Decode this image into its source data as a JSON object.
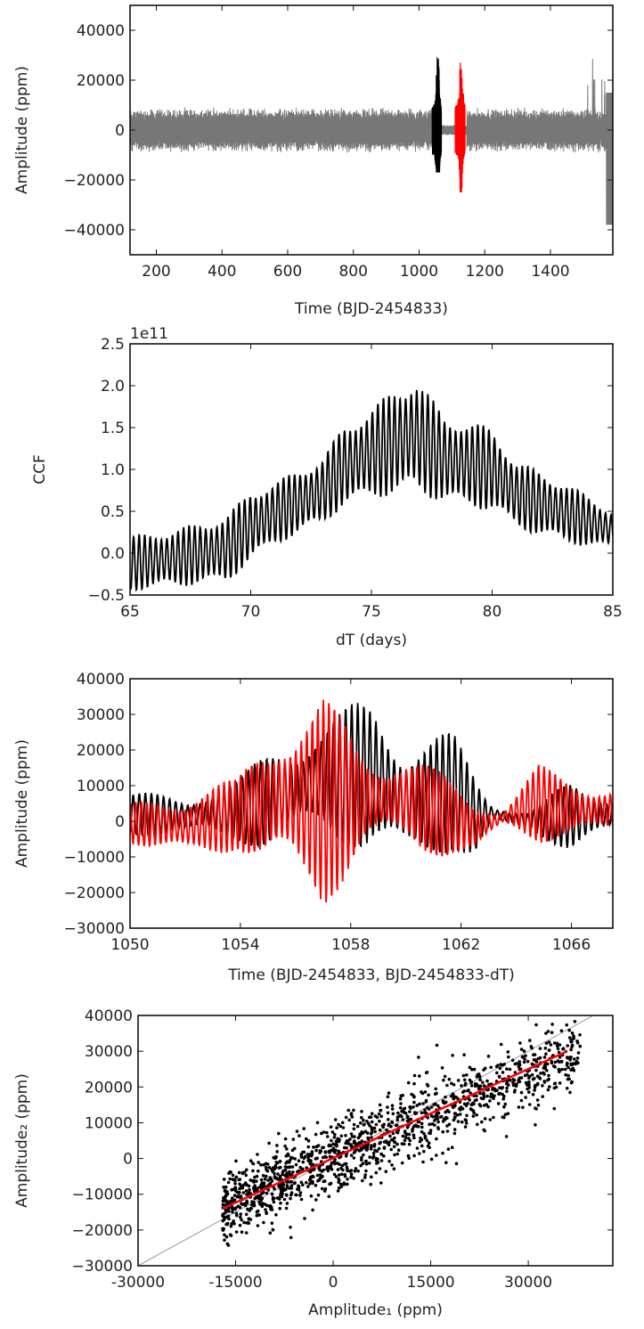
{
  "chart_data": [
    {
      "type": "line",
      "xlabel": "Time (BJD-2454833)",
      "ylabel": "Amplitude (ppm)",
      "xlim": [
        120,
        1590
      ],
      "ylim": [
        -50000,
        50000
      ],
      "xticks": [
        200,
        400,
        600,
        800,
        1000,
        1200,
        1400
      ],
      "xtick_labels": [
        "200",
        "400",
        "600",
        "800",
        "1000",
        "1200",
        "1400"
      ],
      "yticks": [
        40000,
        20000,
        0,
        -20000,
        -40000
      ],
      "ytick_labels": [
        "40000",
        "20000",
        "0",
        "−20000",
        "−40000"
      ],
      "series": [
        {
          "color": "#777777",
          "x_range": [
            120,
            1590
          ],
          "typical_amplitude": 8000,
          "max": 36000,
          "min": -40000
        },
        {
          "color": "#000000",
          "x_range": [
            1040,
            1068
          ],
          "max": 36000,
          "min": -17000
        },
        {
          "color": "#ff0000",
          "x_range": [
            1110,
            1140
          ],
          "max": 36000,
          "min": -25000
        }
      ]
    },
    {
      "type": "line",
      "xlabel": "dT (days)",
      "ylabel": "CCF",
      "offset_text": "1e11",
      "xlim": [
        65,
        85
      ],
      "ylim": [
        -0.5,
        2.5
      ],
      "xticks": [
        65,
        70,
        75,
        80,
        85
      ],
      "xtick_labels": [
        "65",
        "70",
        "75",
        "80",
        "85"
      ],
      "yticks": [
        2.5,
        2.0,
        1.5,
        1.0,
        0.5,
        0.0,
        -0.5
      ],
      "ytick_labels": [
        "2.5",
        "2.0",
        "1.5",
        "1.0",
        "0.5",
        "0.0",
        "−0.5"
      ],
      "series": [
        {
          "color": "#000000",
          "envelope_x": [
            65,
            67,
            69,
            70,
            71,
            73,
            73.8,
            75,
            76.8,
            78,
            80,
            81,
            83,
            85
          ],
          "upper_y": [
            0.2,
            0.3,
            0.45,
            0.75,
            0.85,
            1.15,
            1.5,
            1.75,
            2.13,
            1.65,
            1.5,
            1.1,
            0.85,
            0.5
          ],
          "lower_y": [
            -0.45,
            -0.4,
            -0.35,
            -0.1,
            0.1,
            0.35,
            0.55,
            0.65,
            0.72,
            0.6,
            0.5,
            0.3,
            0.12,
            0.05
          ]
        }
      ]
    },
    {
      "type": "line",
      "xlabel": "Time (BJD-2454833, BJD-2454833-dT)",
      "ylabel": "Amplitude (ppm)",
      "xlim": [
        1050,
        1067.5
      ],
      "ylim": [
        -30000,
        40000
      ],
      "xticks": [
        1050,
        1054,
        1058,
        1062,
        1066
      ],
      "xtick_labels": [
        "1050",
        "1054",
        "1058",
        "1062",
        "1066"
      ],
      "yticks": [
        40000,
        30000,
        20000,
        10000,
        0,
        -10000,
        -20000,
        -30000
      ],
      "ytick_labels": [
        "40000",
        "30000",
        "20000",
        "10000",
        "0",
        "−10000",
        "−20000",
        "−30000"
      ],
      "series": [
        {
          "color": "#000000",
          "envelope_x": [
            1050,
            1052,
            1054,
            1055.5,
            1057,
            1058.8,
            1060,
            1061.7,
            1062.5,
            1063.2,
            1064.5,
            1066,
            1067.5
          ],
          "upper_y": [
            8000,
            8000,
            12000,
            25000,
            29000,
            36000,
            27000,
            25000,
            15000,
            5000,
            3000,
            12000,
            9000
          ],
          "lower_y": [
            -4000,
            -5000,
            -6000,
            -10000,
            -5000,
            -10000,
            -17000,
            -8000,
            -12000,
            -1000,
            -3000,
            -9000,
            -5000
          ]
        },
        {
          "color": "#ff0000",
          "envelope_x": [
            1050,
            1052,
            1053.9,
            1055.5,
            1057,
            1058.5,
            1060,
            1062.5,
            1063.5,
            1064.8,
            1066,
            1067.5
          ],
          "upper_y": [
            5000,
            10000,
            12000,
            34000,
            36000,
            22000,
            20000,
            8000,
            3000,
            16000,
            14000,
            10000
          ],
          "lower_y": [
            -6000,
            -13000,
            -8000,
            -21000,
            -25000,
            -10000,
            -8000,
            -12000,
            -1000,
            -6000,
            -7000,
            -4000
          ]
        }
      ]
    },
    {
      "type": "scatter",
      "xlabel": "Amplitude₁ (ppm)",
      "ylabel": "Amplitude₂ (ppm)",
      "xlim": [
        -30000,
        43000
      ],
      "ylim": [
        -30000,
        40000
      ],
      "xticks": [
        -30000,
        -15000,
        0,
        15000,
        30000
      ],
      "xtick_labels": [
        "-30000",
        "-15000",
        "0",
        "15000",
        "30000"
      ],
      "yticks": [
        40000,
        30000,
        20000,
        10000,
        0,
        -10000,
        -20000,
        -30000
      ],
      "ytick_labels": [
        "40000",
        "30000",
        "20000",
        "10000",
        "0",
        "−10000",
        "−20000",
        "−30000"
      ],
      "point_color": "#000000",
      "point_cloud": {
        "count": 1400,
        "x_range": [
          -17000,
          38000
        ],
        "slope": 0.8,
        "spread": 5000
      },
      "fit_line": {
        "color": "#ff0000",
        "x": [
          -17000,
          36000
        ],
        "y": [
          -14000,
          30000
        ]
      },
      "identity_line": {
        "color": "#999999",
        "x": [
          -30000,
          43000
        ],
        "y": [
          -30000,
          43000
        ]
      }
    }
  ]
}
